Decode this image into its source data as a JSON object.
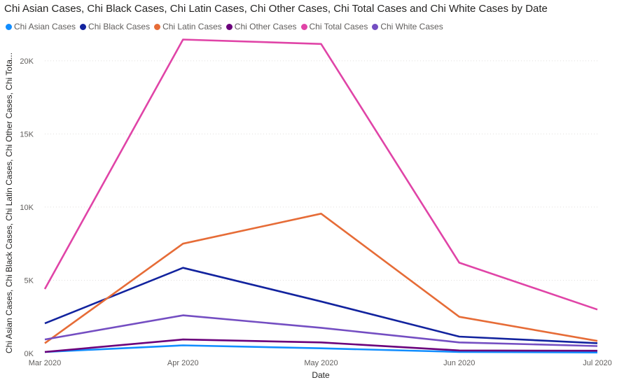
{
  "chart_data": {
    "type": "line",
    "title": "Chi Asian Cases, Chi Black Cases, Chi Latin Cases, Chi Other Cases, Chi Total Cases and Chi White Cases by Date",
    "xlabel": "Date",
    "ylabel": "Chi Asian Cases, Chi Black Cases, Chi Latin Cases, Chi Other Cases, Chi Tota...",
    "x": [
      "Mar 2020",
      "Apr 2020",
      "May 2020",
      "Jun 2020",
      "Jul 2020"
    ],
    "y_ticks": [
      "0K",
      "5K",
      "10K",
      "15K",
      "20K"
    ],
    "ylim": [
      0,
      22000
    ],
    "grid": true,
    "legend_position": "top-left",
    "series": [
      {
        "name": "Chi Asian Cases",
        "color": "#118DFF",
        "values": [
          100,
          550,
          350,
          100,
          60
        ]
      },
      {
        "name": "Chi Black Cases",
        "color": "#12239E",
        "values": [
          2050,
          5850,
          3550,
          1150,
          700
        ]
      },
      {
        "name": "Chi Latin Cases",
        "color": "#E66C37",
        "values": [
          700,
          7500,
          9550,
          2500,
          850
        ]
      },
      {
        "name": "Chi Other Cases",
        "color": "#6B007B",
        "values": [
          100,
          950,
          750,
          200,
          180
        ]
      },
      {
        "name": "Chi Total Cases",
        "color": "#E044A7",
        "values": [
          4400,
          21450,
          21150,
          6200,
          3000
        ]
      },
      {
        "name": "Chi White Cases",
        "color": "#744EC2",
        "values": [
          950,
          2600,
          1750,
          750,
          500
        ]
      }
    ]
  }
}
